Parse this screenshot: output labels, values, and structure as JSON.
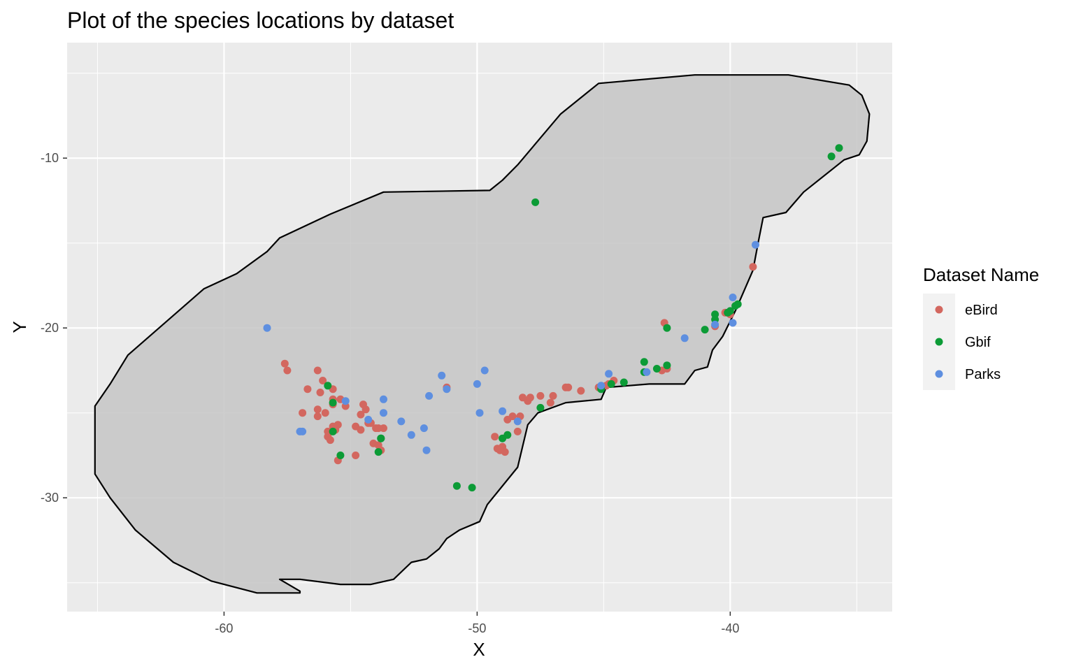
{
  "chart_data": {
    "type": "scatter",
    "title": "Plot of the species locations by dataset",
    "xlabel": "X",
    "ylabel": "Y",
    "xlim": [
      -66.2,
      -33.6
    ],
    "ylim": [
      -36.7,
      -3.2
    ],
    "xticks": [
      -60,
      -50,
      -40
    ],
    "yticks": [
      -10,
      -20,
      -30
    ],
    "xtick_labels": [
      "-60",
      "-50",
      "-40"
    ],
    "ytick_labels": [
      "-10",
      "-20",
      "-30"
    ],
    "grid": true,
    "legend": {
      "title": "Dataset Name",
      "placement": "right",
      "entries": [
        "eBird",
        "Gbif",
        "Parks"
      ]
    },
    "colors": {
      "panel_bg": "#ebebeb",
      "grid": "#ffffff",
      "region_fill": "#c6c6c6",
      "region_stroke": "#000000",
      "eBird": "#d3675f",
      "Gbif": "#0c9b36",
      "Parks": "#5e8fe0"
    },
    "region": [
      [
        -57.8,
        -34.8
      ],
      [
        -57.0,
        -34.8
      ],
      [
        -55.4,
        -35.1
      ],
      [
        -54.2,
        -35.1
      ],
      [
        -53.3,
        -34.8
      ],
      [
        -52.6,
        -33.8
      ],
      [
        -52.0,
        -33.6
      ],
      [
        -51.5,
        -33.0
      ],
      [
        -51.2,
        -32.4
      ],
      [
        -50.7,
        -31.9
      ],
      [
        -49.9,
        -31.4
      ],
      [
        -49.6,
        -30.4
      ],
      [
        -48.4,
        -28.2
      ],
      [
        -48.0,
        -25.7
      ],
      [
        -47.6,
        -25.0
      ],
      [
        -46.5,
        -24.4
      ],
      [
        -45.1,
        -24.2
      ],
      [
        -44.9,
        -23.5
      ],
      [
        -43.2,
        -23.3
      ],
      [
        -41.8,
        -23.3
      ],
      [
        -41.4,
        -22.5
      ],
      [
        -40.9,
        -22.3
      ],
      [
        -40.7,
        -21.3
      ],
      [
        -40.3,
        -20.5
      ],
      [
        -39.8,
        -19.0
      ],
      [
        -39.1,
        -16.6
      ],
      [
        -38.9,
        -15.0
      ],
      [
        -38.7,
        -13.5
      ],
      [
        -37.8,
        -13.2
      ],
      [
        -37.1,
        -12.0
      ],
      [
        -35.5,
        -10.1
      ],
      [
        -34.9,
        -9.8
      ],
      [
        -34.6,
        -9.0
      ],
      [
        -34.5,
        -7.4
      ],
      [
        -34.8,
        -6.3
      ],
      [
        -35.3,
        -5.7
      ],
      [
        -37.7,
        -5.1
      ],
      [
        -41.4,
        -5.1
      ],
      [
        -45.2,
        -5.6
      ],
      [
        -46.7,
        -7.4
      ],
      [
        -48.4,
        -10.4
      ],
      [
        -49.0,
        -11.3
      ],
      [
        -49.5,
        -11.9
      ],
      [
        -53.7,
        -12.0
      ],
      [
        -55.8,
        -13.3
      ],
      [
        -57.8,
        -14.7
      ],
      [
        -58.3,
        -15.5
      ],
      [
        -59.5,
        -16.8
      ],
      [
        -60.8,
        -17.7
      ],
      [
        -63.8,
        -21.6
      ],
      [
        -64.5,
        -23.3
      ],
      [
        -65.1,
        -24.6
      ],
      [
        -65.1,
        -28.6
      ],
      [
        -64.5,
        -30.0
      ],
      [
        -63.5,
        -31.9
      ],
      [
        -62.0,
        -33.8
      ],
      [
        -60.5,
        -34.9
      ],
      [
        -58.7,
        -35.6
      ],
      [
        -57.0,
        -35.6
      ],
      [
        -57.0,
        -35.5
      ]
    ],
    "series": [
      {
        "name": "eBird",
        "x": [
          -57.6,
          -57.5,
          -56.9,
          -56.7,
          -56.3,
          -56.2,
          -56.1,
          -56.3,
          -56.3,
          -56.0,
          -55.9,
          -55.7,
          -55.6,
          -55.7,
          -55.5,
          -55.4,
          -55.9,
          -55.7,
          -55.2,
          -55.8,
          -54.8,
          -54.6,
          -54.5,
          -54.6,
          -54.3,
          -54.4,
          -54.1,
          -54.0,
          -53.8,
          -53.9,
          -53.7,
          -53.9,
          -54.2,
          -54.8,
          -55.5,
          -51.2,
          -49.3,
          -49.2,
          -49.0,
          -48.8,
          -48.6,
          -48.4,
          -48.2,
          -48.0,
          -47.9,
          -47.5,
          -47.1,
          -47.0,
          -46.5,
          -46.4,
          -45.9,
          -45.2,
          -44.9,
          -44.6,
          -42.6,
          -42.5,
          -40.6,
          -40.2,
          -40.0,
          -39.1,
          -55.7,
          -48.9,
          -49.1,
          -48.3,
          -44.8,
          -42.7
        ],
        "y": [
          -22.1,
          -22.5,
          -25.0,
          -23.6,
          -24.8,
          -23.8,
          -23.1,
          -22.5,
          -25.2,
          -25.0,
          -26.4,
          -25.8,
          -26.0,
          -24.5,
          -25.7,
          -24.2,
          -26.1,
          -24.2,
          -24.6,
          -26.6,
          -25.8,
          -25.1,
          -24.5,
          -26.0,
          -25.6,
          -24.8,
          -26.8,
          -25.9,
          -27.2,
          -26.9,
          -25.9,
          -25.9,
          -25.6,
          -27.5,
          -27.8,
          -23.5,
          -26.4,
          -27.1,
          -27.0,
          -25.4,
          -25.2,
          -26.1,
          -24.1,
          -24.3,
          -24.1,
          -24.0,
          -24.4,
          -24.0,
          -23.5,
          -23.5,
          -23.7,
          -23.5,
          -23.4,
          -23.1,
          -19.7,
          -22.4,
          -19.9,
          -19.1,
          -19.2,
          -16.4,
          -23.6,
          -27.3,
          -27.2,
          -25.2,
          -23.3,
          -22.5
        ]
      },
      {
        "name": "Gbif",
        "x": [
          -55.9,
          -55.7,
          -55.7,
          -55.4,
          -53.8,
          -53.8,
          -53.9,
          -50.8,
          -50.2,
          -49.0,
          -48.8,
          -47.7,
          -47.5,
          -45.1,
          -44.7,
          -44.2,
          -43.4,
          -43.4,
          -42.9,
          -42.5,
          -42.5,
          -41.0,
          -40.6,
          -40.6,
          -40.1,
          -40.0,
          -39.8,
          -39.7,
          -36.0,
          -35.7
        ],
        "y": [
          -23.4,
          -24.4,
          -26.1,
          -27.5,
          -26.5,
          -26.5,
          -27.3,
          -29.3,
          -29.4,
          -26.5,
          -26.3,
          -12.6,
          -24.7,
          -23.6,
          -23.3,
          -23.2,
          -22.0,
          -22.6,
          -22.4,
          -22.2,
          -20.0,
          -20.1,
          -19.2,
          -19.5,
          -19.1,
          -19.0,
          -18.7,
          -18.6,
          -9.9,
          -9.4
        ]
      },
      {
        "name": "Parks",
        "x": [
          -58.3,
          -57.0,
          -56.9,
          -55.2,
          -54.3,
          -53.7,
          -53.7,
          -53.0,
          -52.6,
          -52.1,
          -52.0,
          -51.9,
          -51.4,
          -51.2,
          -50.0,
          -49.9,
          -49.7,
          -49.0,
          -48.4,
          -45.1,
          -44.8,
          -43.3,
          -41.8,
          -40.6,
          -39.9,
          -39.9,
          -39.0
        ],
        "y": [
          -20.0,
          -26.1,
          -26.1,
          -24.3,
          -25.4,
          -24.2,
          -25.0,
          -25.5,
          -26.3,
          -25.9,
          -27.2,
          -24.0,
          -22.8,
          -23.6,
          -23.3,
          -25.0,
          -22.5,
          -24.9,
          -25.5,
          -23.4,
          -22.7,
          -22.6,
          -20.6,
          -19.8,
          -18.2,
          -19.7,
          -15.1
        ]
      }
    ]
  }
}
